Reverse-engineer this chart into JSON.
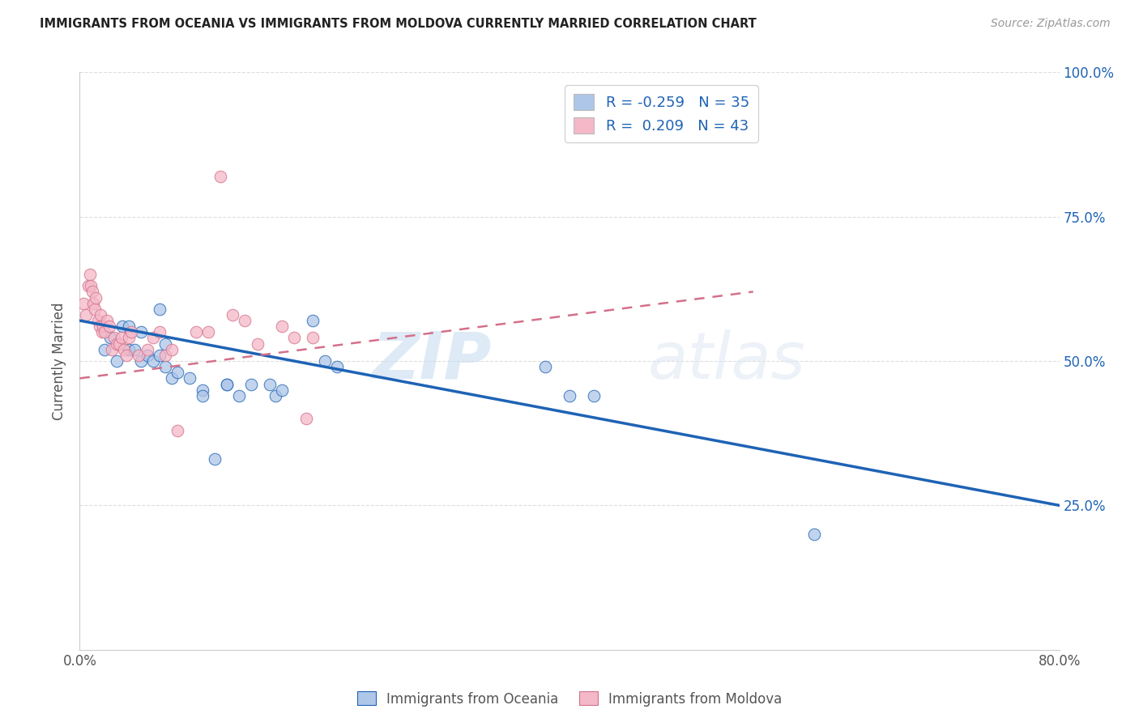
{
  "title": "IMMIGRANTS FROM OCEANIA VS IMMIGRANTS FROM MOLDOVA CURRENTLY MARRIED CORRELATION CHART",
  "source": "Source: ZipAtlas.com",
  "ylabel": "Currently Married",
  "xmin": 0.0,
  "xmax": 0.8,
  "ymin": 0.0,
  "ymax": 1.0,
  "blue_scatter_x": [
    0.02,
    0.025,
    0.03,
    0.035,
    0.04,
    0.04,
    0.045,
    0.05,
    0.05,
    0.055,
    0.06,
    0.065,
    0.065,
    0.07,
    0.07,
    0.075,
    0.08,
    0.09,
    0.1,
    0.1,
    0.11,
    0.12,
    0.12,
    0.13,
    0.14,
    0.155,
    0.16,
    0.165,
    0.19,
    0.2,
    0.21,
    0.38,
    0.4,
    0.42,
    0.6
  ],
  "blue_scatter_y": [
    0.52,
    0.54,
    0.5,
    0.56,
    0.52,
    0.56,
    0.52,
    0.5,
    0.55,
    0.51,
    0.5,
    0.59,
    0.51,
    0.49,
    0.53,
    0.47,
    0.48,
    0.47,
    0.45,
    0.44,
    0.33,
    0.46,
    0.46,
    0.44,
    0.46,
    0.46,
    0.44,
    0.45,
    0.57,
    0.5,
    0.49,
    0.49,
    0.44,
    0.44,
    0.2
  ],
  "pink_scatter_x": [
    0.003,
    0.005,
    0.007,
    0.008,
    0.009,
    0.01,
    0.011,
    0.012,
    0.013,
    0.015,
    0.016,
    0.017,
    0.018,
    0.019,
    0.02,
    0.022,
    0.024,
    0.026,
    0.028,
    0.03,
    0.032,
    0.034,
    0.036,
    0.038,
    0.04,
    0.042,
    0.048,
    0.055,
    0.06,
    0.065,
    0.07,
    0.075,
    0.08,
    0.095,
    0.105,
    0.115,
    0.125,
    0.135,
    0.145,
    0.165,
    0.175,
    0.185,
    0.19
  ],
  "pink_scatter_y": [
    0.6,
    0.58,
    0.63,
    0.65,
    0.63,
    0.62,
    0.6,
    0.59,
    0.61,
    0.57,
    0.56,
    0.58,
    0.55,
    0.56,
    0.55,
    0.57,
    0.56,
    0.52,
    0.54,
    0.53,
    0.53,
    0.54,
    0.52,
    0.51,
    0.54,
    0.55,
    0.51,
    0.52,
    0.54,
    0.55,
    0.51,
    0.52,
    0.38,
    0.55,
    0.55,
    0.82,
    0.58,
    0.57,
    0.53,
    0.56,
    0.54,
    0.4,
    0.54
  ],
  "blue_line_x": [
    0.0,
    0.8
  ],
  "blue_line_y": [
    0.57,
    0.25
  ],
  "pink_line_x": [
    0.0,
    0.55
  ],
  "pink_line_y": [
    0.47,
    0.62
  ],
  "blue_color": "#aec6e8",
  "blue_line_color": "#1e63b5",
  "pink_color": "#f4b8c8",
  "pink_line_color": "#d4708a",
  "R_blue": "-0.259",
  "N_blue": "35",
  "R_pink": "0.209",
  "N_pink": "43",
  "background_color": "#ffffff",
  "watermark_zip": "ZIP",
  "watermark_atlas": "atlas",
  "grid_color": "#dddddd",
  "right_ytick_labels": [
    "100.0%",
    "75.0%",
    "50.0%",
    "25.0%"
  ],
  "right_ytick_pos": [
    1.0,
    0.75,
    0.5,
    0.25
  ]
}
